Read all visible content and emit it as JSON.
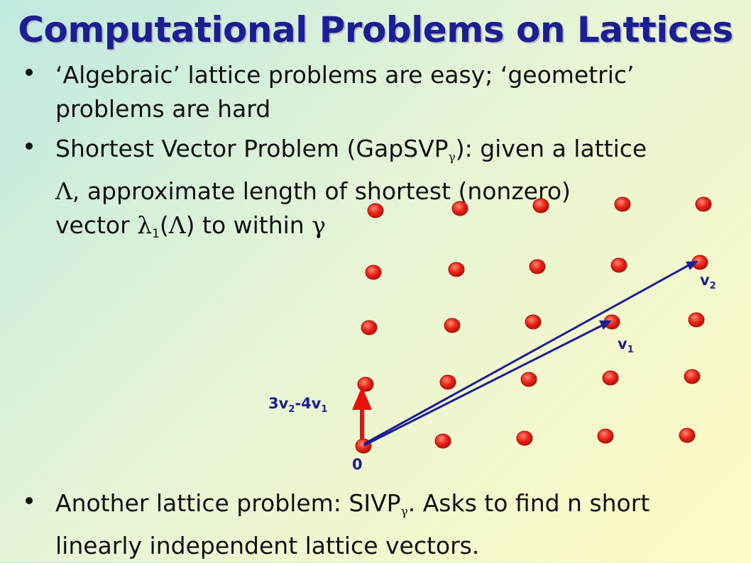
{
  "slide": {
    "title": "Computational Problems on Lattices",
    "bullets": [
      {
        "lines": [
          "‘Algebraic’ lattice problems are easy; ‘geometric’",
          "problems are hard"
        ]
      },
      {
        "line1_pre": "Shortest Vector Problem (GapSVP",
        "line1_sub": "γ",
        "line1_post": "): given a lattice",
        "line2_sym": "Λ",
        "line2_rest": ", approximate length of shortest (nonzero)",
        "line3_pre": "vector ",
        "line3_lambda": "λ",
        "line3_sub": "1",
        "line3_open": "(",
        "line3_sym": "Λ",
        "line3_close": ") to within ",
        "line3_gamma": "γ"
      },
      {
        "line1_pre": "Another lattice problem: SIVP",
        "line1_sub": "γ",
        "line1_post": ". Asks to find n short",
        "line2": "linearly independent lattice vectors."
      }
    ]
  },
  "diagram": {
    "labels": {
      "origin": "0",
      "v1_main": "v",
      "v1_sub": "1",
      "v2_main": "v",
      "v2_sub": "2",
      "comb_a": "3v",
      "comb_a_sub": "2",
      "comb_b": "-4v",
      "comb_b_sub": "1"
    },
    "colors": {
      "point": "#e8251a",
      "basis_vector": "#1b1f8f",
      "short_vector": "#e8120c"
    }
  }
}
